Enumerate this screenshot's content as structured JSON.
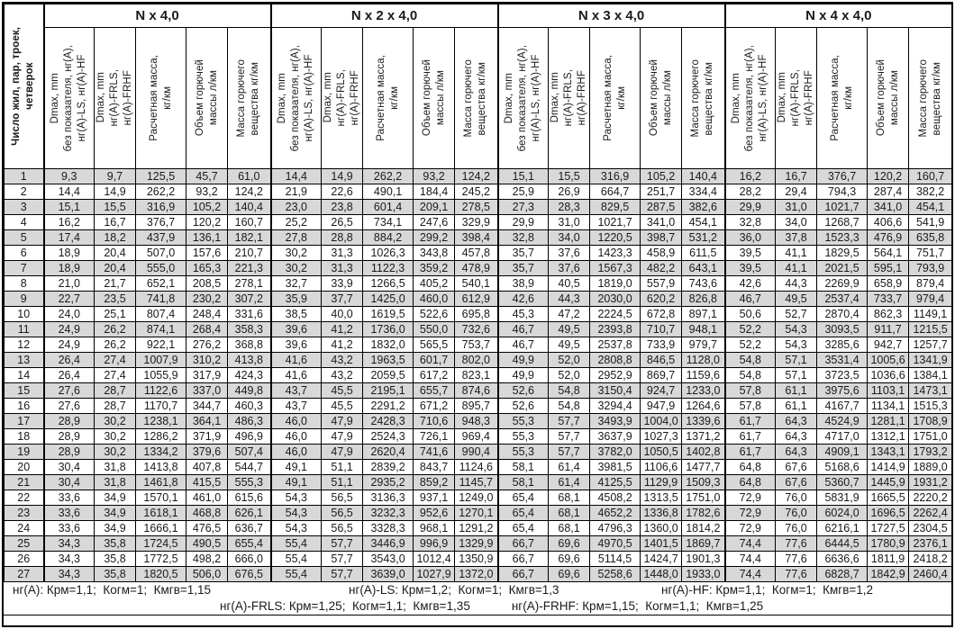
{
  "title_col": "Число жил, пар, троек,\nчетверок",
  "groups": [
    {
      "label": "N x 4,0"
    },
    {
      "label": "N x 2 x 4,0"
    },
    {
      "label": "N x 3 x 4,0"
    },
    {
      "label": "N x 4 x 4,0"
    }
  ],
  "subheaders": [
    "Dmax, mm\nбез показателя, нг(А),\nнг(А)-LS, нг(А)-HF",
    "Dmax, mm\nнг(А)-FRLS,\nнг(А)-FRHF",
    "Расчетная масса,\nкг/км",
    "Объем горючей\nмассы л/км",
    "Масса горючего\nвещества кг/км"
  ],
  "rows": [
    {
      "n": "1",
      "v": [
        "9,3",
        "9,7",
        "125,5",
        "45,7",
        "61,0",
        "14,4",
        "14,9",
        "262,2",
        "93,2",
        "124,2",
        "15,1",
        "15,5",
        "316,9",
        "105,2",
        "140,4",
        "16,2",
        "16,7",
        "376,7",
        "120,2",
        "160,7"
      ]
    },
    {
      "n": "2",
      "v": [
        "14,4",
        "14,9",
        "262,2",
        "93,2",
        "124,2",
        "21,9",
        "22,6",
        "490,1",
        "184,4",
        "245,2",
        "25,9",
        "26,9",
        "664,7",
        "251,7",
        "334,4",
        "28,2",
        "29,4",
        "794,3",
        "287,4",
        "382,2"
      ]
    },
    {
      "n": "3",
      "v": [
        "15,1",
        "15,5",
        "316,9",
        "105,2",
        "140,4",
        "23,0",
        "23,8",
        "601,4",
        "209,1",
        "278,5",
        "27,3",
        "28,3",
        "829,5",
        "287,5",
        "382,6",
        "29,9",
        "31,0",
        "1021,7",
        "341,0",
        "454,1"
      ]
    },
    {
      "n": "4",
      "v": [
        "16,2",
        "16,7",
        "376,7",
        "120,2",
        "160,7",
        "25,2",
        "26,5",
        "734,1",
        "247,6",
        "329,9",
        "29,9",
        "31,0",
        "1021,7",
        "341,0",
        "454,1",
        "32,8",
        "34,0",
        "1268,7",
        "406,6",
        "541,9"
      ]
    },
    {
      "n": "5",
      "v": [
        "17,4",
        "18,2",
        "437,9",
        "136,1",
        "182,1",
        "27,8",
        "28,8",
        "884,2",
        "299,2",
        "398,4",
        "32,8",
        "34,0",
        "1220,5",
        "398,7",
        "531,2",
        "36,0",
        "37,8",
        "1523,3",
        "476,9",
        "635,8"
      ]
    },
    {
      "n": "6",
      "v": [
        "18,9",
        "20,4",
        "507,0",
        "157,6",
        "210,7",
        "30,2",
        "31,3",
        "1026,3",
        "343,8",
        "457,8",
        "35,7",
        "37,6",
        "1423,3",
        "458,9",
        "611,5",
        "39,5",
        "41,1",
        "1829,5",
        "564,1",
        "751,7"
      ]
    },
    {
      "n": "7",
      "v": [
        "18,9",
        "20,4",
        "555,0",
        "165,3",
        "221,3",
        "30,2",
        "31,3",
        "1122,3",
        "359,2",
        "478,9",
        "35,7",
        "37,6",
        "1567,3",
        "482,2",
        "643,1",
        "39,5",
        "41,1",
        "2021,5",
        "595,1",
        "793,9"
      ]
    },
    {
      "n": "8",
      "v": [
        "21,0",
        "21,7",
        "652,1",
        "208,5",
        "278,1",
        "32,7",
        "33,9",
        "1266,5",
        "405,2",
        "540,1",
        "38,9",
        "40,5",
        "1819,0",
        "557,9",
        "743,6",
        "42,6",
        "44,3",
        "2269,9",
        "658,9",
        "879,4"
      ]
    },
    {
      "n": "9",
      "v": [
        "22,7",
        "23,5",
        "741,8",
        "230,2",
        "307,2",
        "35,9",
        "37,7",
        "1425,0",
        "460,0",
        "612,9",
        "42,6",
        "44,3",
        "2030,0",
        "620,2",
        "826,8",
        "46,7",
        "49,5",
        "2537,4",
        "733,7",
        "979,4"
      ]
    },
    {
      "n": "10",
      "v": [
        "24,0",
        "25,1",
        "807,4",
        "248,4",
        "331,6",
        "38,5",
        "40,0",
        "1619,5",
        "522,6",
        "695,8",
        "45,3",
        "47,2",
        "2224,5",
        "672,8",
        "897,1",
        "50,6",
        "52,7",
        "2870,4",
        "862,3",
        "1149,1"
      ]
    },
    {
      "n": "11",
      "v": [
        "24,9",
        "26,2",
        "874,1",
        "268,4",
        "358,3",
        "39,6",
        "41,2",
        "1736,0",
        "550,0",
        "732,6",
        "46,7",
        "49,5",
        "2393,8",
        "710,7",
        "948,1",
        "52,2",
        "54,3",
        "3093,5",
        "911,7",
        "1215,5"
      ]
    },
    {
      "n": "12",
      "v": [
        "24,9",
        "26,2",
        "922,1",
        "276,2",
        "368,8",
        "39,6",
        "41,2",
        "1832,0",
        "565,5",
        "753,7",
        "46,7",
        "49,5",
        "2537,8",
        "733,9",
        "979,7",
        "52,2",
        "54,3",
        "3285,6",
        "942,7",
        "1257,7"
      ]
    },
    {
      "n": "13",
      "v": [
        "26,4",
        "27,4",
        "1007,9",
        "310,2",
        "413,8",
        "41,6",
        "43,2",
        "1963,5",
        "601,7",
        "802,0",
        "49,9",
        "52,0",
        "2808,8",
        "846,5",
        "1128,0",
        "54,8",
        "57,1",
        "3531,4",
        "1005,6",
        "1341,9"
      ]
    },
    {
      "n": "14",
      "v": [
        "26,4",
        "27,4",
        "1055,9",
        "317,9",
        "424,3",
        "41,6",
        "43,2",
        "2059,5",
        "617,2",
        "823,1",
        "49,9",
        "52,0",
        "2952,9",
        "869,7",
        "1159,6",
        "54,8",
        "57,1",
        "3723,5",
        "1036,6",
        "1384,1"
      ]
    },
    {
      "n": "15",
      "v": [
        "27,6",
        "28,7",
        "1122,6",
        "337,0",
        "449,8",
        "43,7",
        "45,5",
        "2195,1",
        "655,7",
        "874,6",
        "52,6",
        "54,8",
        "3150,4",
        "924,7",
        "1233,0",
        "57,8",
        "61,1",
        "3975,6",
        "1103,1",
        "1473,1"
      ]
    },
    {
      "n": "16",
      "v": [
        "27,6",
        "28,7",
        "1170,7",
        "344,7",
        "460,3",
        "43,7",
        "45,5",
        "2291,2",
        "671,2",
        "895,7",
        "52,6",
        "54,8",
        "3294,4",
        "947,9",
        "1264,6",
        "57,8",
        "61,1",
        "4167,7",
        "1134,1",
        "1515,3"
      ]
    },
    {
      "n": "17",
      "v": [
        "28,9",
        "30,2",
        "1238,1",
        "364,1",
        "486,3",
        "46,0",
        "47,9",
        "2428,3",
        "710,6",
        "948,3",
        "55,3",
        "57,7",
        "3493,9",
        "1004,0",
        "1339,6",
        "61,7",
        "64,3",
        "4524,9",
        "1281,1",
        "1708,9"
      ]
    },
    {
      "n": "18",
      "v": [
        "28,9",
        "30,2",
        "1286,2",
        "371,9",
        "496,9",
        "46,0",
        "47,9",
        "2524,3",
        "726,1",
        "969,4",
        "55,3",
        "57,7",
        "3637,9",
        "1027,3",
        "1371,2",
        "61,7",
        "64,3",
        "4717,0",
        "1312,1",
        "1751,0"
      ]
    },
    {
      "n": "19",
      "v": [
        "28,9",
        "30,2",
        "1334,2",
        "379,6",
        "507,4",
        "46,0",
        "47,9",
        "2620,4",
        "741,6",
        "990,4",
        "55,3",
        "57,7",
        "3782,0",
        "1050,5",
        "1402,8",
        "61,7",
        "64,3",
        "4909,1",
        "1343,1",
        "1793,2"
      ]
    },
    {
      "n": "20",
      "v": [
        "30,4",
        "31,8",
        "1413,8",
        "407,8",
        "544,7",
        "49,1",
        "51,1",
        "2839,2",
        "843,7",
        "1124,6",
        "58,1",
        "61,4",
        "3981,5",
        "1106,6",
        "1477,7",
        "64,8",
        "67,6",
        "5168,6",
        "1414,9",
        "1889,0"
      ]
    },
    {
      "n": "21",
      "v": [
        "30,4",
        "31,8",
        "1461,8",
        "415,5",
        "555,3",
        "49,1",
        "51,1",
        "2935,2",
        "859,2",
        "1145,7",
        "58,1",
        "61,4",
        "4125,5",
        "1129,9",
        "1509,3",
        "64,8",
        "67,6",
        "5360,7",
        "1445,9",
        "1931,2"
      ]
    },
    {
      "n": "22",
      "v": [
        "33,6",
        "34,9",
        "1570,1",
        "461,0",
        "615,6",
        "54,3",
        "56,5",
        "3136,3",
        "937,1",
        "1249,0",
        "65,4",
        "68,1",
        "4508,2",
        "1313,5",
        "1751,0",
        "72,9",
        "76,0",
        "5831,9",
        "1665,5",
        "2220,2"
      ]
    },
    {
      "n": "23",
      "v": [
        "33,6",
        "34,9",
        "1618,1",
        "468,8",
        "626,1",
        "54,3",
        "56,5",
        "3232,3",
        "952,6",
        "1270,1",
        "65,4",
        "68,1",
        "4652,2",
        "1336,8",
        "1782,6",
        "72,9",
        "76,0",
        "6024,0",
        "1696,5",
        "2262,4"
      ]
    },
    {
      "n": "24",
      "v": [
        "33,6",
        "34,9",
        "1666,1",
        "476,5",
        "636,7",
        "54,3",
        "56,5",
        "3328,3",
        "968,1",
        "1291,2",
        "65,4",
        "68,1",
        "4796,3",
        "1360,0",
        "1814,2",
        "72,9",
        "76,0",
        "6216,1",
        "1727,5",
        "2304,5"
      ]
    },
    {
      "n": "25",
      "v": [
        "34,3",
        "35,8",
        "1724,5",
        "490,5",
        "655,4",
        "55,4",
        "57,7",
        "3446,9",
        "996,9",
        "1329,9",
        "66,7",
        "69,6",
        "4970,5",
        "1401,5",
        "1869,7",
        "74,4",
        "77,6",
        "6444,5",
        "1780,9",
        "2376,1"
      ]
    },
    {
      "n": "26",
      "v": [
        "34,3",
        "35,8",
        "1772,5",
        "498,2",
        "666,0",
        "55,4",
        "57,7",
        "3543,0",
        "1012,4",
        "1350,9",
        "66,7",
        "69,6",
        "5114,5",
        "1424,7",
        "1901,3",
        "74,4",
        "77,6",
        "6636,6",
        "1811,9",
        "2418,2"
      ]
    },
    {
      "n": "27",
      "v": [
        "34,3",
        "35,8",
        "1820,5",
        "506,0",
        "676,5",
        "55,4",
        "57,7",
        "3639,0",
        "1027,9",
        "1372,0",
        "66,7",
        "69,6",
        "5258,6",
        "1448,0",
        "1933,0",
        "74,4",
        "77,6",
        "6828,7",
        "1842,9",
        "2460,4"
      ]
    }
  ],
  "footer": {
    "line1": [
      "нг(А): Крм=1,1;  Когм=1;  Кмгв=1,15",
      "нг(А)-LS: Крм=1,2;  Когм=1;  Кмгв=1,3",
      "нг(А)-HF: Крм=1,1;  Когм=1;  Кмгв=1,2"
    ],
    "line2": [
      "нг(А)-FRLS: Крм=1,25;  Когм=1,1;  Кмгв=1,35",
      "нг(А)-FRHF: Крм=1,15;  Когм=1,1;  Кмгв=1,25"
    ]
  }
}
